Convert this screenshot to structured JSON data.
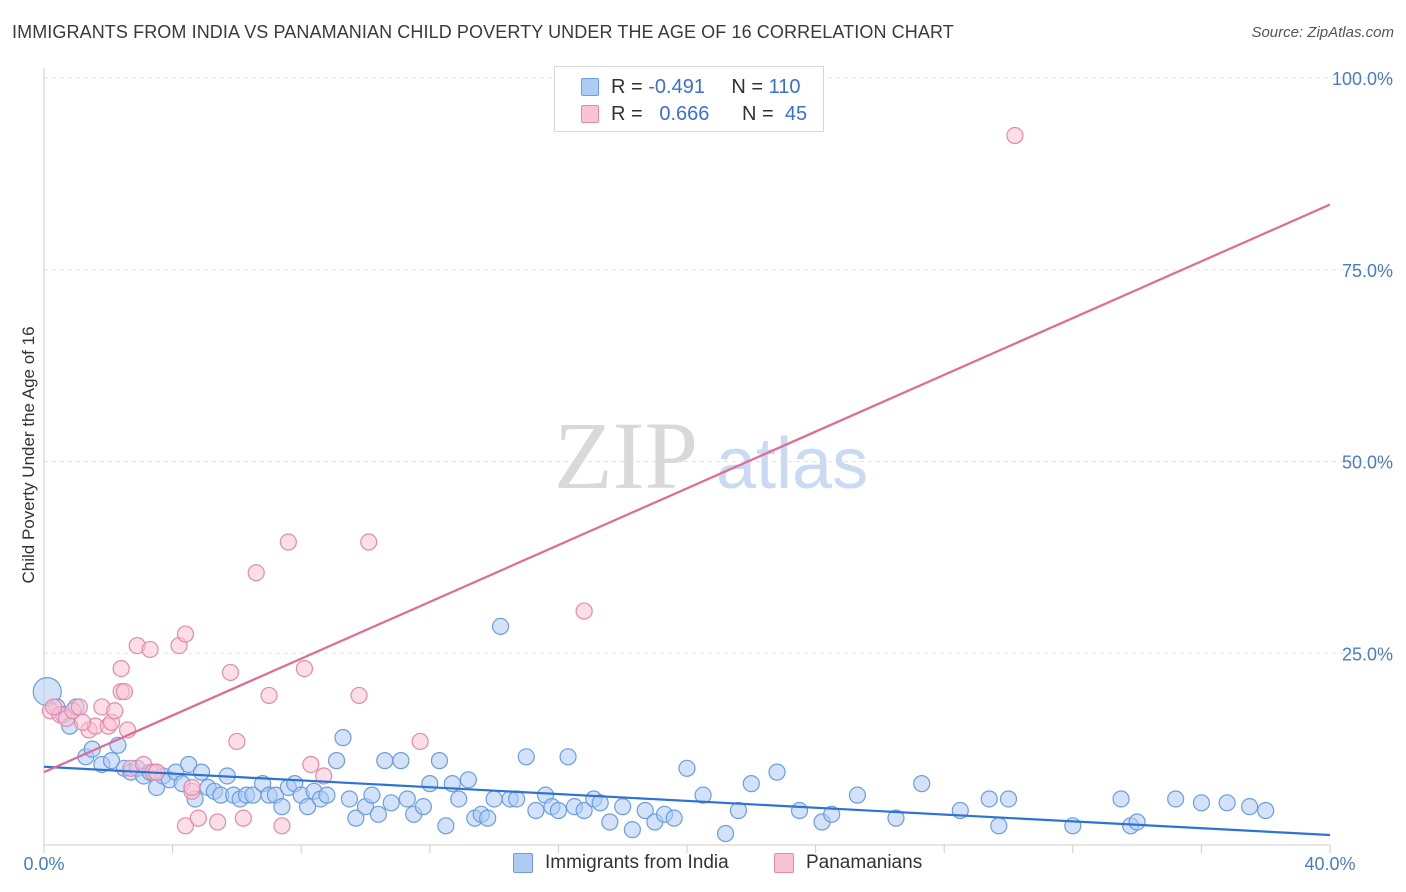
{
  "title": "IMMIGRANTS FROM INDIA VS PANAMANIAN CHILD POVERTY UNDER THE AGE OF 16 CORRELATION CHART",
  "source": "Source: ZipAtlas.com",
  "watermark": {
    "zip": "ZIP",
    "atlas": "atlas"
  },
  "legend": {
    "rows": [
      {
        "r_label": "R =",
        "r_value": "-0.491",
        "n_label": "N =",
        "n_value": "110",
        "color": "#aecbf2",
        "border": "#6a9ee0"
      },
      {
        "r_label": "R =",
        "r_value": "0.666",
        "n_label": "N =",
        "n_value": "45",
        "color": "#f9c3d4",
        "border": "#e48aa9"
      }
    ]
  },
  "bottom_legend": [
    {
      "label": "Immigrants from India",
      "color": "#aecbf2",
      "border": "#6a9ee0"
    },
    {
      "label": "Panamanians",
      "color": "#f9c3d4",
      "border": "#e48aa9"
    }
  ],
  "chart_data": {
    "type": "scatter",
    "title": "IMMIGRANTS FROM INDIA VS PANAMANIAN CHILD POVERTY UNDER THE AGE OF 16 CORRELATION CHART",
    "xlabel": "",
    "ylabel": "Child Poverty Under the Age of 16",
    "xlim": [
      0,
      40
    ],
    "ylim": [
      0,
      100
    ],
    "x_tick_labels": [
      "0.0%",
      "40.0%"
    ],
    "y_ticks": [
      25,
      50,
      75,
      100
    ],
    "y_tick_labels": [
      "25.0%",
      "50.0%",
      "75.0%",
      "100.0%"
    ],
    "grid": true,
    "series": [
      {
        "name": "Immigrants from India",
        "color": "#6a9ee0",
        "fill": "#aecbf2",
        "trendline": {
          "x": [
            0,
            40
          ],
          "y": [
            10.2,
            1.3
          ],
          "color": "#2e73d2"
        },
        "points": [
          [
            0.1,
            20.0
          ],
          [
            0.4,
            18.0
          ],
          [
            0.6,
            17.0
          ],
          [
            0.8,
            15.5
          ],
          [
            1.0,
            18.0
          ],
          [
            1.3,
            11.5
          ],
          [
            1.5,
            12.5
          ],
          [
            1.8,
            10.5
          ],
          [
            2.1,
            11.0
          ],
          [
            2.3,
            13.0
          ],
          [
            2.5,
            10.0
          ],
          [
            2.7,
            9.5
          ],
          [
            2.9,
            10.0
          ],
          [
            3.1,
            9.0
          ],
          [
            3.3,
            9.5
          ],
          [
            3.5,
            7.5
          ],
          [
            3.7,
            9.0
          ],
          [
            3.9,
            8.5
          ],
          [
            4.1,
            9.5
          ],
          [
            4.3,
            8.0
          ],
          [
            4.5,
            10.5
          ],
          [
            4.7,
            6.0
          ],
          [
            4.9,
            9.5
          ],
          [
            5.1,
            7.5
          ],
          [
            5.3,
            7.0
          ],
          [
            5.5,
            6.5
          ],
          [
            5.7,
            9.0
          ],
          [
            5.9,
            6.5
          ],
          [
            6.1,
            6.0
          ],
          [
            6.3,
            6.5
          ],
          [
            6.5,
            6.5
          ],
          [
            6.8,
            8.0
          ],
          [
            7.0,
            6.5
          ],
          [
            7.2,
            6.5
          ],
          [
            7.4,
            5.0
          ],
          [
            7.6,
            7.5
          ],
          [
            7.8,
            8.0
          ],
          [
            8.0,
            6.5
          ],
          [
            8.2,
            5.0
          ],
          [
            8.4,
            7.0
          ],
          [
            8.6,
            6.0
          ],
          [
            8.8,
            6.5
          ],
          [
            9.1,
            11.0
          ],
          [
            9.3,
            14.0
          ],
          [
            9.5,
            6.0
          ],
          [
            9.7,
            3.5
          ],
          [
            10.0,
            5.0
          ],
          [
            10.2,
            6.5
          ],
          [
            10.4,
            4.0
          ],
          [
            10.6,
            11.0
          ],
          [
            10.8,
            5.5
          ],
          [
            11.1,
            11.0
          ],
          [
            11.3,
            6.0
          ],
          [
            11.5,
            4.0
          ],
          [
            11.8,
            5.0
          ],
          [
            12.0,
            8.0
          ],
          [
            12.3,
            11.0
          ],
          [
            12.5,
            2.5
          ],
          [
            12.7,
            8.0
          ],
          [
            12.9,
            6.0
          ],
          [
            13.2,
            8.5
          ],
          [
            13.4,
            3.5
          ],
          [
            13.6,
            4.0
          ],
          [
            13.8,
            3.5
          ],
          [
            14.0,
            6.0
          ],
          [
            14.2,
            28.5
          ],
          [
            14.5,
            6.0
          ],
          [
            14.7,
            6.0
          ],
          [
            15.0,
            11.5
          ],
          [
            15.3,
            4.5
          ],
          [
            15.6,
            6.5
          ],
          [
            15.8,
            5.0
          ],
          [
            16.0,
            4.5
          ],
          [
            16.3,
            11.5
          ],
          [
            16.5,
            5.0
          ],
          [
            16.8,
            4.5
          ],
          [
            17.1,
            6.0
          ],
          [
            17.3,
            5.5
          ],
          [
            17.6,
            3.0
          ],
          [
            18.0,
            5.0
          ],
          [
            18.3,
            2.0
          ],
          [
            18.7,
            4.5
          ],
          [
            19.0,
            3.0
          ],
          [
            19.3,
            4.0
          ],
          [
            19.6,
            3.5
          ],
          [
            20.0,
            10.0
          ],
          [
            20.5,
            6.5
          ],
          [
            21.2,
            1.5
          ],
          [
            21.6,
            4.5
          ],
          [
            22.0,
            8.0
          ],
          [
            22.8,
            9.5
          ],
          [
            23.5,
            4.5
          ],
          [
            24.2,
            3.0
          ],
          [
            24.5,
            4.0
          ],
          [
            25.3,
            6.5
          ],
          [
            26.5,
            3.5
          ],
          [
            27.3,
            8.0
          ],
          [
            28.5,
            4.5
          ],
          [
            29.4,
            6.0
          ],
          [
            29.7,
            2.5
          ],
          [
            30.0,
            6.0
          ],
          [
            32.0,
            2.5
          ],
          [
            33.5,
            6.0
          ],
          [
            33.8,
            2.5
          ],
          [
            34.0,
            3.0
          ],
          [
            35.2,
            6.0
          ],
          [
            36.0,
            5.5
          ],
          [
            36.8,
            5.5
          ],
          [
            37.5,
            5.0
          ],
          [
            38.0,
            4.5
          ]
        ]
      },
      {
        "name": "Panamanians",
        "color": "#e48aa9",
        "fill": "#f9c3d4",
        "trendline": {
          "x": [
            0,
            40
          ],
          "y": [
            9.5,
            83.5
          ],
          "color": "#e06a95"
        },
        "points": [
          [
            0.2,
            17.5
          ],
          [
            0.5,
            17.0
          ],
          [
            0.7,
            16.5
          ],
          [
            0.9,
            17.5
          ],
          [
            1.1,
            18.0
          ],
          [
            1.4,
            15.0
          ],
          [
            1.6,
            15.5
          ],
          [
            1.8,
            18.0
          ],
          [
            2.0,
            15.5
          ],
          [
            2.1,
            16.0
          ],
          [
            2.2,
            17.5
          ],
          [
            2.4,
            20.0
          ],
          [
            2.4,
            23.0
          ],
          [
            2.5,
            20.0
          ],
          [
            2.6,
            15.0
          ],
          [
            2.7,
            10.0
          ],
          [
            2.9,
            26.0
          ],
          [
            3.1,
            10.5
          ],
          [
            3.3,
            25.5
          ],
          [
            3.4,
            9.5
          ],
          [
            3.5,
            9.5
          ],
          [
            4.2,
            26.0
          ],
          [
            4.4,
            27.5
          ],
          [
            4.4,
            2.5
          ],
          [
            4.6,
            7.0
          ],
          [
            4.8,
            3.5
          ],
          [
            5.4,
            3.0
          ],
          [
            5.8,
            22.5
          ],
          [
            6.0,
            13.5
          ],
          [
            6.2,
            3.5
          ],
          [
            6.6,
            35.5
          ],
          [
            7.0,
            19.5
          ],
          [
            7.4,
            2.5
          ],
          [
            7.6,
            39.5
          ],
          [
            8.1,
            23.0
          ],
          [
            8.3,
            10.5
          ],
          [
            8.7,
            9.0
          ],
          [
            9.8,
            19.5
          ],
          [
            10.1,
            39.5
          ],
          [
            11.7,
            13.5
          ],
          [
            16.8,
            30.5
          ],
          [
            30.2,
            92.5
          ],
          [
            0.3,
            18.0
          ],
          [
            1.2,
            16.0
          ],
          [
            4.6,
            7.5
          ]
        ]
      }
    ]
  }
}
